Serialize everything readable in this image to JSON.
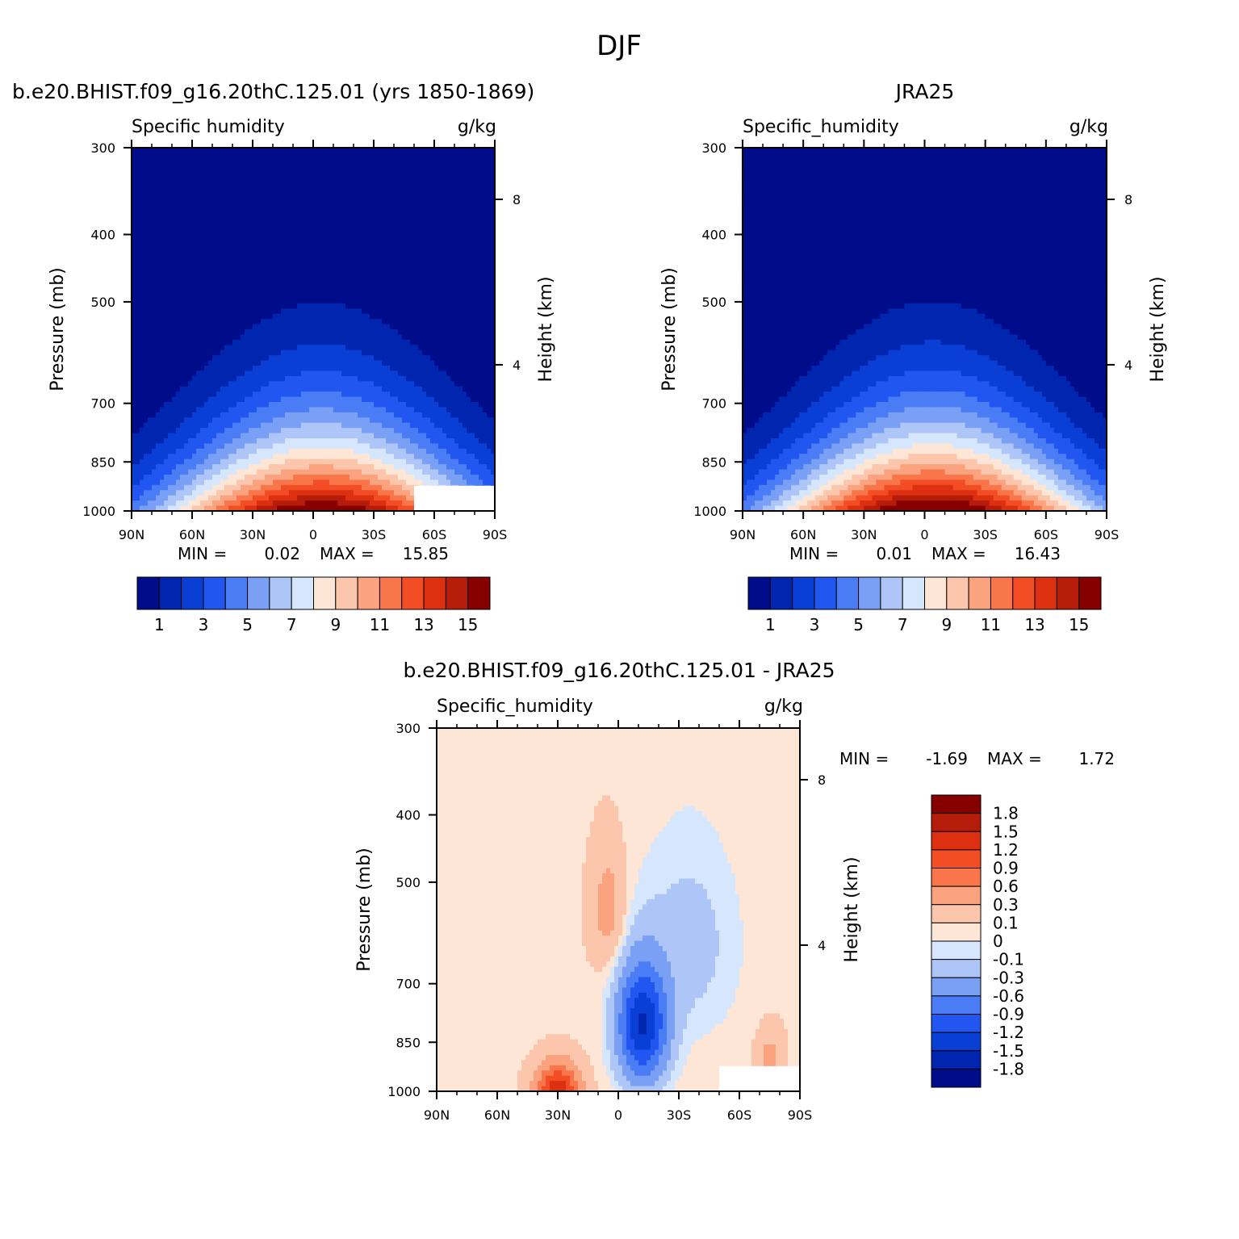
{
  "figure": {
    "title": "DJF",
    "colors": {
      "humidity_scale": [
        "#000d8a",
        "#0026b0",
        "#0a3fd6",
        "#2157f0",
        "#4a7cf5",
        "#7aa0f5",
        "#aec6f7",
        "#d6e6fc",
        "#fde6d6",
        "#fcc6ad",
        "#fba27f",
        "#f9764b",
        "#f24d24",
        "#dc3011",
        "#b51d0a",
        "#870000"
      ],
      "diff_scale": [
        "#000d8a",
        "#0026b0",
        "#0a3fd6",
        "#2157f0",
        "#4a7cf5",
        "#7aa0f5",
        "#aec6f7",
        "#d6e6fc",
        "#fde6d6",
        "#fcc6ad",
        "#fba27f",
        "#f9764b",
        "#f24d24",
        "#dc3011",
        "#b51d0a",
        "#870000"
      ]
    }
  },
  "chart_data": [
    {
      "type": "heatmap",
      "panel_title": "b.e20.BHIST.f09_g16.20thC.125.01 (yrs 1850-1869)",
      "variable_label": "Specific humidity",
      "units": "g/kg",
      "ylabel": "Pressure (mb)",
      "ylabel_right": "Height (km)",
      "x_ticks": [
        "90N",
        "60N",
        "30N",
        "0",
        "30S",
        "60S",
        "90S"
      ],
      "y_ticks": [
        "300",
        "400",
        "500",
        "700",
        "850",
        "1000"
      ],
      "y_ticks_right": [
        "8",
        "4"
      ],
      "x_range": [
        90,
        -90
      ],
      "y_range": [
        300,
        1000
      ],
      "y_scale": "log",
      "min_label": "MIN =",
      "min_value": "0.02",
      "max_label": "MAX =",
      "max_value": "15.85",
      "peak": 15.85,
      "colorbar_labels": [
        "1",
        "3",
        "5",
        "7",
        "9",
        "11",
        "13",
        "15"
      ],
      "colorbar_levels": [
        1,
        2,
        3,
        4,
        5,
        6,
        7,
        8,
        9,
        10,
        11,
        12,
        13,
        14,
        15
      ],
      "orientation": "horizontal"
    },
    {
      "type": "heatmap",
      "panel_title": "JRA25",
      "variable_label": "Specific_humidity",
      "units": "g/kg",
      "ylabel": "Pressure (mb)",
      "ylabel_right": "Height (km)",
      "x_ticks": [
        "90N",
        "60N",
        "30N",
        "0",
        "30S",
        "60S",
        "90S"
      ],
      "y_ticks": [
        "300",
        "400",
        "500",
        "700",
        "850",
        "1000"
      ],
      "y_ticks_right": [
        "8",
        "4"
      ],
      "x_range": [
        90,
        -90
      ],
      "y_range": [
        300,
        1000
      ],
      "y_scale": "log",
      "min_label": "MIN =",
      "min_value": "0.01",
      "max_label": "MAX =",
      "max_value": "16.43",
      "peak": 16.43,
      "colorbar_labels": [
        "1",
        "3",
        "5",
        "7",
        "9",
        "11",
        "13",
        "15"
      ],
      "colorbar_levels": [
        1,
        2,
        3,
        4,
        5,
        6,
        7,
        8,
        9,
        10,
        11,
        12,
        13,
        14,
        15
      ],
      "orientation": "horizontal"
    },
    {
      "type": "heatmap",
      "panel_title": "b.e20.BHIST.f09_g16.20thC.125.01 - JRA25",
      "variable_label": "Specific_humidity",
      "units": "g/kg",
      "ylabel": "Pressure (mb)",
      "ylabel_right": "Height (km)",
      "x_ticks": [
        "90N",
        "60N",
        "30N",
        "0",
        "30S",
        "60S",
        "90S"
      ],
      "y_ticks": [
        "300",
        "400",
        "500",
        "700",
        "850",
        "1000"
      ],
      "y_ticks_right": [
        "8",
        "4"
      ],
      "x_range": [
        90,
        -90
      ],
      "y_range": [
        300,
        1000
      ],
      "y_scale": "log",
      "min_label": "MIN =",
      "min_value": "-1.69",
      "max_label": "MAX =",
      "max_value": "1.72",
      "colorbar_labels": [
        "1.8",
        "1.5",
        "1.2",
        "0.9",
        "0.6",
        "0.3",
        "0.1",
        "0",
        "-0.1",
        "-0.3",
        "-0.6",
        "-0.9",
        "-1.2",
        "-1.5",
        "-1.8"
      ],
      "colorbar_levels": [
        -1.8,
        -1.5,
        -1.2,
        -0.9,
        -0.6,
        -0.3,
        -0.1,
        0,
        0.1,
        0.3,
        0.6,
        0.9,
        1.2,
        1.5,
        1.8
      ],
      "orientation": "vertical"
    }
  ]
}
